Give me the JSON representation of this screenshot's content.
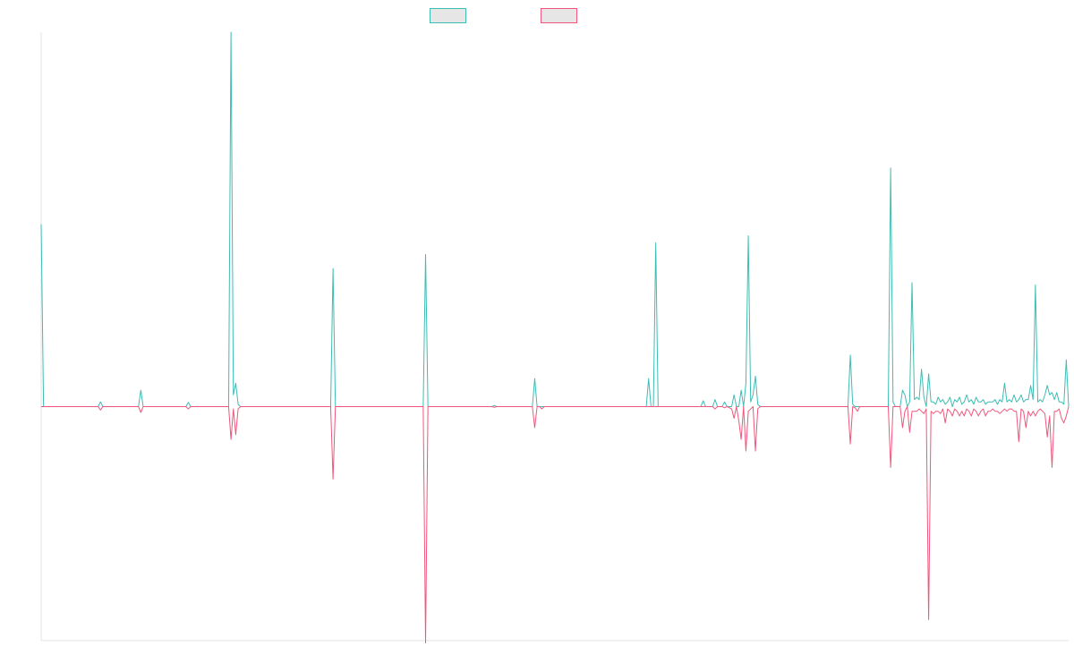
{
  "chart_data": {
    "type": "line",
    "title": "",
    "xlabel": "",
    "ylabel": "",
    "grid": false,
    "legend": {
      "placement": "top-center",
      "entries": [
        {
          "label": "",
          "stroke": "#3dbdb4",
          "fill": "#e6e6e6"
        },
        {
          "label": "",
          "stroke": "#f0567c",
          "fill": "#e6e6e6"
        }
      ]
    },
    "ylim": [
      -1.0,
      1.6
    ],
    "series": [
      {
        "name": "",
        "color": "#3dbdb4",
        "points": [
          [
            0,
            0.78
          ],
          [
            1,
            0
          ],
          [
            24,
            0
          ],
          [
            25,
            0.02
          ],
          [
            26,
            0
          ],
          [
            41,
            0
          ],
          [
            42,
            0.07
          ],
          [
            43,
            0
          ],
          [
            61,
            0
          ],
          [
            62,
            0.018
          ],
          [
            63,
            0
          ],
          [
            79,
            0
          ],
          [
            80,
            1.6
          ],
          [
            81,
            0.05
          ],
          [
            82,
            0.1
          ],
          [
            83,
            0.01
          ],
          [
            84,
            0
          ],
          [
            122,
            0
          ],
          [
            123,
            0.59
          ],
          [
            124,
            0
          ],
          [
            161,
            0
          ],
          [
            162,
            0.65
          ],
          [
            163,
            0
          ],
          [
            190,
            0
          ],
          [
            191,
            0.005
          ],
          [
            192,
            0
          ],
          [
            207,
            0
          ],
          [
            208,
            0.12
          ],
          [
            209,
            0
          ],
          [
            212,
            0
          ],
          [
            255,
            0
          ],
          [
            256,
            0.12
          ],
          [
            257,
            0
          ],
          [
            258,
            0
          ],
          [
            259,
            0.7
          ],
          [
            260,
            0
          ],
          [
            261,
            0
          ],
          [
            262,
            0
          ],
          [
            278,
            0
          ],
          [
            279,
            0.025
          ],
          [
            280,
            0
          ],
          [
            283,
            0
          ],
          [
            284,
            0.03
          ],
          [
            285,
            0
          ],
          [
            287,
            0
          ],
          [
            288,
            0.02
          ],
          [
            289,
            0
          ],
          [
            291,
            0
          ],
          [
            292,
            0.05
          ],
          [
            293,
            0
          ],
          [
            294,
            0
          ],
          [
            295,
            0.07
          ],
          [
            296,
            0
          ],
          [
            297,
            0.1
          ],
          [
            298,
            0.73
          ],
          [
            299,
            0.02
          ],
          [
            300,
            0.05
          ],
          [
            301,
            0.13
          ],
          [
            302,
            0.01
          ],
          [
            303,
            0
          ],
          [
            340,
            0
          ],
          [
            341,
            0.22
          ],
          [
            342,
            0.01
          ],
          [
            343,
            0
          ],
          [
            344,
            0
          ],
          [
            357,
            0
          ],
          [
            358,
            1.02
          ],
          [
            359,
            0.02
          ],
          [
            360,
            0
          ],
          [
            361,
            0
          ],
          [
            362,
            0
          ],
          [
            363,
            0.07
          ],
          [
            364,
            0.05
          ],
          [
            365,
            0
          ],
          [
            366,
            0.02
          ],
          [
            367,
            0.53
          ],
          [
            368,
            0.03
          ],
          [
            369,
            0.04
          ],
          [
            370,
            0.03
          ],
          [
            371,
            0.16
          ],
          [
            372,
            0.04
          ],
          [
            373,
            0
          ],
          [
            374,
            0.14
          ],
          [
            375,
            0.02
          ],
          [
            376,
            0.02
          ],
          [
            377,
            0.01
          ],
          [
            378,
            0.04
          ],
          [
            379,
            0.02
          ],
          [
            380,
            0.03
          ],
          [
            381,
            0.01
          ],
          [
            382,
            0.02
          ],
          [
            383,
            0.04
          ],
          [
            384,
            0
          ],
          [
            385,
            0.03
          ],
          [
            386,
            0.02
          ],
          [
            387,
            0.04
          ],
          [
            388,
            0.01
          ],
          [
            389,
            0.02
          ],
          [
            390,
            0.05
          ],
          [
            391,
            0.02
          ],
          [
            392,
            0.03
          ],
          [
            393,
            0.01
          ],
          [
            394,
            0.04
          ],
          [
            395,
            0.02
          ],
          [
            396,
            0.02
          ],
          [
            397,
            0.03
          ],
          [
            398,
            0.01
          ],
          [
            399,
            0.02
          ],
          [
            400,
            0.02
          ],
          [
            401,
            0.02
          ],
          [
            402,
            0.03
          ],
          [
            403,
            0.01
          ],
          [
            404,
            0.03
          ],
          [
            405,
            0.02
          ],
          [
            406,
            0.1
          ],
          [
            407,
            0.02
          ],
          [
            408,
            0.03
          ],
          [
            409,
            0.02
          ],
          [
            410,
            0.05
          ],
          [
            411,
            0.02
          ],
          [
            412,
            0.03
          ],
          [
            413,
            0.05
          ],
          [
            414,
            0.02
          ],
          [
            415,
            0.03
          ],
          [
            416,
            0.03
          ],
          [
            417,
            0.09
          ],
          [
            418,
            0.03
          ],
          [
            419,
            0.52
          ],
          [
            420,
            0.02
          ],
          [
            421,
            0.03
          ],
          [
            422,
            0.02
          ],
          [
            423,
            0.05
          ],
          [
            424,
            0.09
          ],
          [
            425,
            0.05
          ],
          [
            426,
            0.06
          ],
          [
            427,
            0.03
          ],
          [
            428,
            0.06
          ],
          [
            429,
            0.02
          ],
          [
            430,
            0.02
          ],
          [
            431,
            0.01
          ],
          [
            432,
            0.2
          ],
          [
            433,
            0
          ]
        ]
      },
      {
        "name": "",
        "color": "#f0567c",
        "points": [
          [
            0,
            0
          ],
          [
            1,
            0
          ],
          [
            24,
            0
          ],
          [
            25,
            -0.015
          ],
          [
            26,
            0
          ],
          [
            41,
            0
          ],
          [
            42,
            -0.025
          ],
          [
            43,
            0
          ],
          [
            61,
            0
          ],
          [
            62,
            -0.01
          ],
          [
            63,
            0
          ],
          [
            79,
            0
          ],
          [
            80,
            -0.14
          ],
          [
            81,
            -0.01
          ],
          [
            82,
            -0.12
          ],
          [
            83,
            -0.01
          ],
          [
            84,
            0
          ],
          [
            122,
            0
          ],
          [
            123,
            -0.31
          ],
          [
            124,
            0
          ],
          [
            161,
            0
          ],
          [
            162,
            -1.01
          ],
          [
            163,
            0
          ],
          [
            190,
            0
          ],
          [
            191,
            -0.003
          ],
          [
            192,
            0
          ],
          [
            207,
            0
          ],
          [
            208,
            -0.09
          ],
          [
            209,
            0
          ],
          [
            210,
            0
          ],
          [
            211,
            -0.01
          ],
          [
            212,
            0
          ],
          [
            280,
            0
          ],
          [
            283,
            0
          ],
          [
            284,
            -0.01
          ],
          [
            285,
            0
          ],
          [
            287,
            0
          ],
          [
            288,
            -0.005
          ],
          [
            289,
            0
          ],
          [
            291,
            -0.01
          ],
          [
            292,
            -0.05
          ],
          [
            293,
            0
          ],
          [
            294,
            -0.06
          ],
          [
            295,
            -0.14
          ],
          [
            296,
            0
          ],
          [
            297,
            -0.19
          ],
          [
            298,
            -0.02
          ],
          [
            299,
            -0.01
          ],
          [
            300,
            0
          ],
          [
            301,
            -0.19
          ],
          [
            302,
            -0.01
          ],
          [
            303,
            0
          ],
          [
            340,
            0
          ],
          [
            341,
            -0.16
          ],
          [
            342,
            0
          ],
          [
            343,
            -0.005
          ],
          [
            344,
            -0.02
          ],
          [
            345,
            0
          ],
          [
            357,
            0
          ],
          [
            358,
            -0.26
          ],
          [
            359,
            0
          ],
          [
            360,
            0
          ],
          [
            361,
            0
          ],
          [
            362,
            0
          ],
          [
            363,
            -0.09
          ],
          [
            364,
            -0.02
          ],
          [
            365,
            0
          ],
          [
            366,
            -0.11
          ],
          [
            367,
            -0.02
          ],
          [
            368,
            -0.02
          ],
          [
            369,
            -0.02
          ],
          [
            370,
            -0.01
          ],
          [
            371,
            -0.02
          ],
          [
            372,
            -0.03
          ],
          [
            373,
            -0.01
          ],
          [
            374,
            -0.91
          ],
          [
            375,
            -0.02
          ],
          [
            376,
            -0.03
          ],
          [
            377,
            -0.02
          ],
          [
            378,
            -0.02
          ],
          [
            379,
            -0.03
          ],
          [
            380,
            -0.01
          ],
          [
            381,
            -0.07
          ],
          [
            382,
            -0.01
          ],
          [
            383,
            -0.02
          ],
          [
            384,
            -0.04
          ],
          [
            385,
            -0.01
          ],
          [
            386,
            -0.02
          ],
          [
            387,
            -0.04
          ],
          [
            388,
            -0.02
          ],
          [
            389,
            -0.04
          ],
          [
            390,
            -0.01
          ],
          [
            391,
            -0.02
          ],
          [
            392,
            -0.04
          ],
          [
            393,
            -0.01
          ],
          [
            394,
            -0.02
          ],
          [
            395,
            -0.04
          ],
          [
            396,
            -0.02
          ],
          [
            397,
            -0.01
          ],
          [
            398,
            -0.04
          ],
          [
            399,
            -0.02
          ],
          [
            400,
            -0.02
          ],
          [
            401,
            -0.01
          ],
          [
            402,
            -0.02
          ],
          [
            403,
            -0.02
          ],
          [
            404,
            -0.03
          ],
          [
            405,
            -0.02
          ],
          [
            406,
            -0.01
          ],
          [
            407,
            -0.02
          ],
          [
            408,
            -0.01
          ],
          [
            409,
            -0.01
          ],
          [
            410,
            -0.02
          ],
          [
            411,
            -0.02
          ],
          [
            412,
            -0.15
          ],
          [
            413,
            -0.01
          ],
          [
            414,
            -0.02
          ],
          [
            415,
            -0.09
          ],
          [
            416,
            -0.02
          ],
          [
            417,
            -0.04
          ],
          [
            418,
            -0.02
          ],
          [
            419,
            -0.04
          ],
          [
            420,
            -0.02
          ],
          [
            421,
            -0.01
          ],
          [
            422,
            -0.02
          ],
          [
            423,
            -0.03
          ],
          [
            424,
            -0.13
          ],
          [
            425,
            -0.04
          ],
          [
            426,
            -0.26
          ],
          [
            427,
            -0.02
          ],
          [
            428,
            -0.02
          ],
          [
            429,
            -0.01
          ],
          [
            430,
            -0.05
          ],
          [
            431,
            -0.07
          ],
          [
            432,
            -0.04
          ],
          [
            433,
            0
          ]
        ]
      }
    ]
  }
}
